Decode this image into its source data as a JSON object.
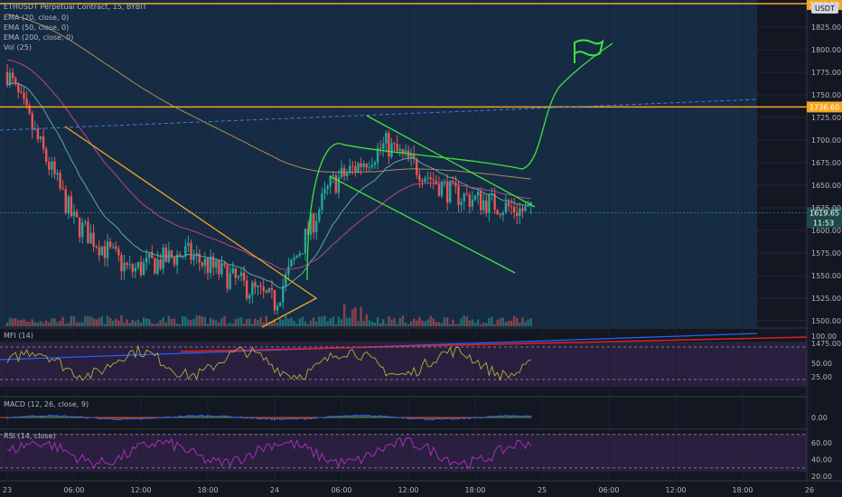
{
  "header": {
    "symbol": "ETHUSDT Perpetual Contract, 15, BYBIT",
    "currency": "USDT",
    "indicators": [
      "EMA (20, close, 0)",
      "EMA (50, close, 0)",
      "EMA (200, close, 0)",
      "Vol (25)"
    ]
  },
  "colors": {
    "background": "#131722",
    "chart_background": "#162c44",
    "up": "#26a69a",
    "down": "#ef5350",
    "ema20": "#5fa8a0",
    "ema50": "#b4488a",
    "ema200": "#b08a58",
    "annotation_green": "#3ee33e",
    "annotation_orange": "#f5a623",
    "support_red": "#e01f1f",
    "trend_blue": "#2962ff",
    "mfi_line": "#b3b03a",
    "macd_line": "#2962ff",
    "signal_line": "#ff6d00",
    "rsi_line": "#b530c6",
    "indicator_bg": "#2a1f3f"
  },
  "price_axis": {
    "ticks": [
      "1850.00",
      "1825.00",
      "1800.00",
      "1775.00",
      "1750.00",
      "1725.00",
      "1700.00",
      "1675.00",
      "1650.00",
      "1625.00",
      "1600.00",
      "1575.00",
      "1550.00",
      "1525.00",
      "1500.00",
      "1475.00"
    ],
    "badges": {
      "level_high": "1850.00",
      "level": "1736.60",
      "last_price": "1619.65",
      "countdown": "11:53"
    }
  },
  "time_axis": {
    "ticks": [
      "23",
      "06:00",
      "12:00",
      "18:00",
      "24",
      "06:00",
      "12:00",
      "18:00",
      "25",
      "06:00",
      "12:00",
      "18:00",
      "26"
    ]
  },
  "mfi": {
    "label": "MFI (14)",
    "ticks": [
      "100.00",
      "50.00",
      "25.00"
    ],
    "overbought": 80,
    "oversold": 20
  },
  "macd": {
    "label": "MACD (12, 26, close, 9)",
    "ticks": [
      "0.00"
    ]
  },
  "rsi": {
    "label": "RSI (14, close)",
    "ticks": [
      "60.00",
      "40.00",
      "20.00"
    ],
    "overbought": 70,
    "oversold": 30
  },
  "chart_data": {
    "type": "line",
    "title": "ETHUSDT Perpetual Contract, 15, BYBIT",
    "x": [
      "23",
      "06:00",
      "12:00",
      "18:00",
      "24",
      "06:00",
      "12:00",
      "18:00",
      "25"
    ],
    "series": [
      {
        "values": [
          1775,
          1610,
          1555,
          1575,
          1520,
          1650,
          1695,
          1640,
          1619.65
        ]
      }
    ],
    "ylim": [
      1465,
      1855
    ],
    "annotations": {
      "resistance": 1736.6,
      "upper_level": 1850,
      "last_price": 1619.65
    }
  }
}
